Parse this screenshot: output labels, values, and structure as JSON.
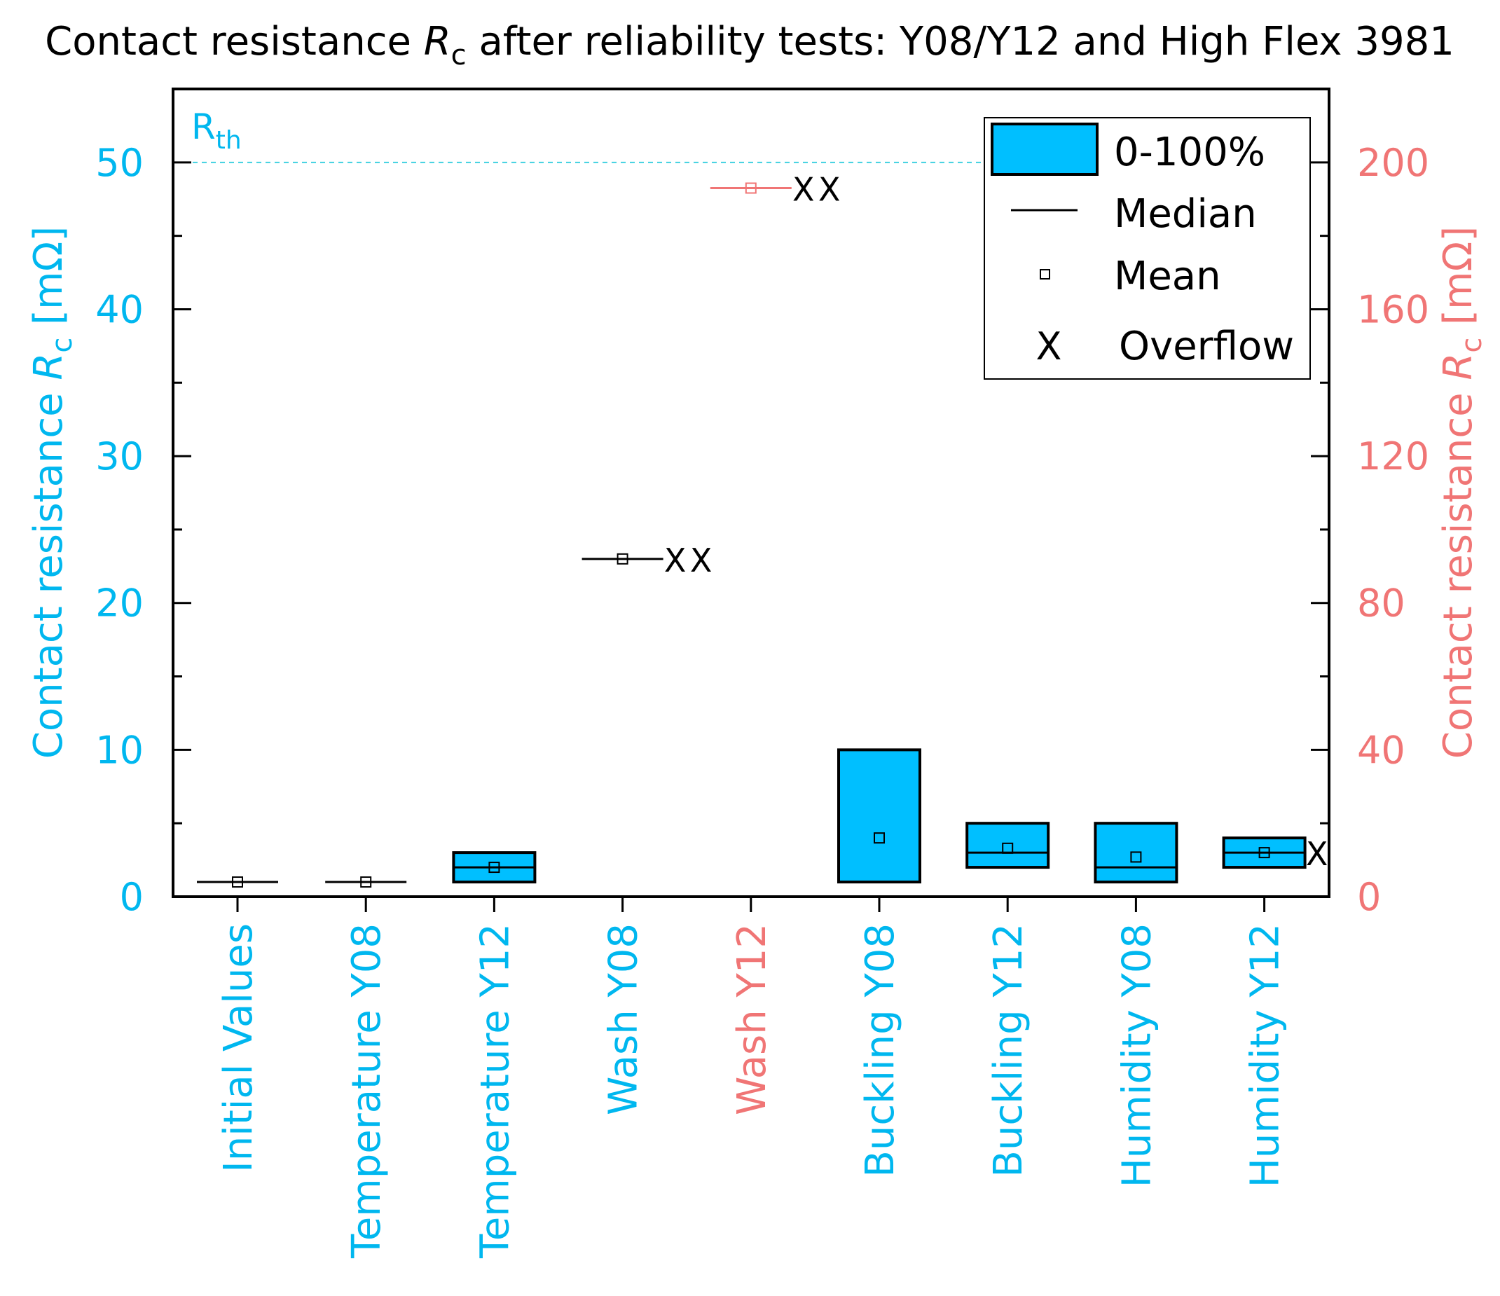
{
  "chart_data": {
    "type": "box",
    "title_main": "Contact resistance ",
    "title_var": "R",
    "title_sub": "c",
    "title_rest": " after reliability tests: Y08/Y12 and High Flex 3981",
    "ylabel_left": {
      "main": "Contact resistance ",
      "var": "R",
      "sub": "c",
      "unit": " [mΩ]"
    },
    "ylabel_right": {
      "main": "Contact resistance ",
      "var": "R",
      "sub": "c",
      "unit": " [mΩ]"
    },
    "ylim_left": [
      0,
      55
    ],
    "ylim_right": [
      0,
      220
    ],
    "yticks_left": [
      0,
      10,
      20,
      30,
      40,
      50
    ],
    "yticks_right": [
      0,
      40,
      80,
      120,
      160,
      200
    ],
    "threshold": {
      "label_main": "R",
      "label_sub": "th",
      "value": 50
    },
    "colors": {
      "left_axis": "#00b7ef",
      "right_axis": "#f07575",
      "box_fill": "#00bfff",
      "threshold": "#3fd0e0"
    },
    "legend": {
      "position": "top-right",
      "entries": [
        "0-100%",
        "Median",
        "Mean",
        "Overflow"
      ],
      "overflow_symbol": "X"
    },
    "categories": [
      "Initial Values",
      "Temperature Y08",
      "Temperature Y12",
      "Wash Y08",
      "Wash Y12",
      "Buckling Y08",
      "Buckling Y12",
      "Humidity Y08",
      "Humidity Y12"
    ],
    "series": [
      {
        "category": "Initial Values",
        "axis": "left",
        "min": 1,
        "max": 1,
        "median": 1,
        "mean": 1,
        "overflow": 0
      },
      {
        "category": "Temperature Y08",
        "axis": "left",
        "min": 1,
        "max": 1,
        "median": 1,
        "mean": 1,
        "overflow": 0
      },
      {
        "category": "Temperature Y12",
        "axis": "left",
        "min": 1,
        "max": 3,
        "median": 2,
        "mean": 2,
        "overflow": 0
      },
      {
        "category": "Wash Y08",
        "axis": "left",
        "min": 23,
        "max": 23,
        "median": 23,
        "mean": 23,
        "overflow": 2
      },
      {
        "category": "Wash Y12",
        "axis": "right",
        "min": 193,
        "max": 193,
        "median": 193,
        "mean": 193,
        "overflow": 2
      },
      {
        "category": "Buckling Y08",
        "axis": "left",
        "min": 1,
        "max": 10,
        "median": null,
        "mean": 4,
        "overflow": 0
      },
      {
        "category": "Buckling Y12",
        "axis": "left",
        "min": 2,
        "max": 5,
        "median": 3,
        "mean": 3.3,
        "overflow": 0
      },
      {
        "category": "Humidity Y08",
        "axis": "left",
        "min": 1,
        "max": 5,
        "median": 2,
        "mean": 2.7,
        "overflow": 0
      },
      {
        "category": "Humidity Y12",
        "axis": "left",
        "min": 2,
        "max": 4,
        "median": 3,
        "mean": 3,
        "overflow": 1
      }
    ]
  }
}
